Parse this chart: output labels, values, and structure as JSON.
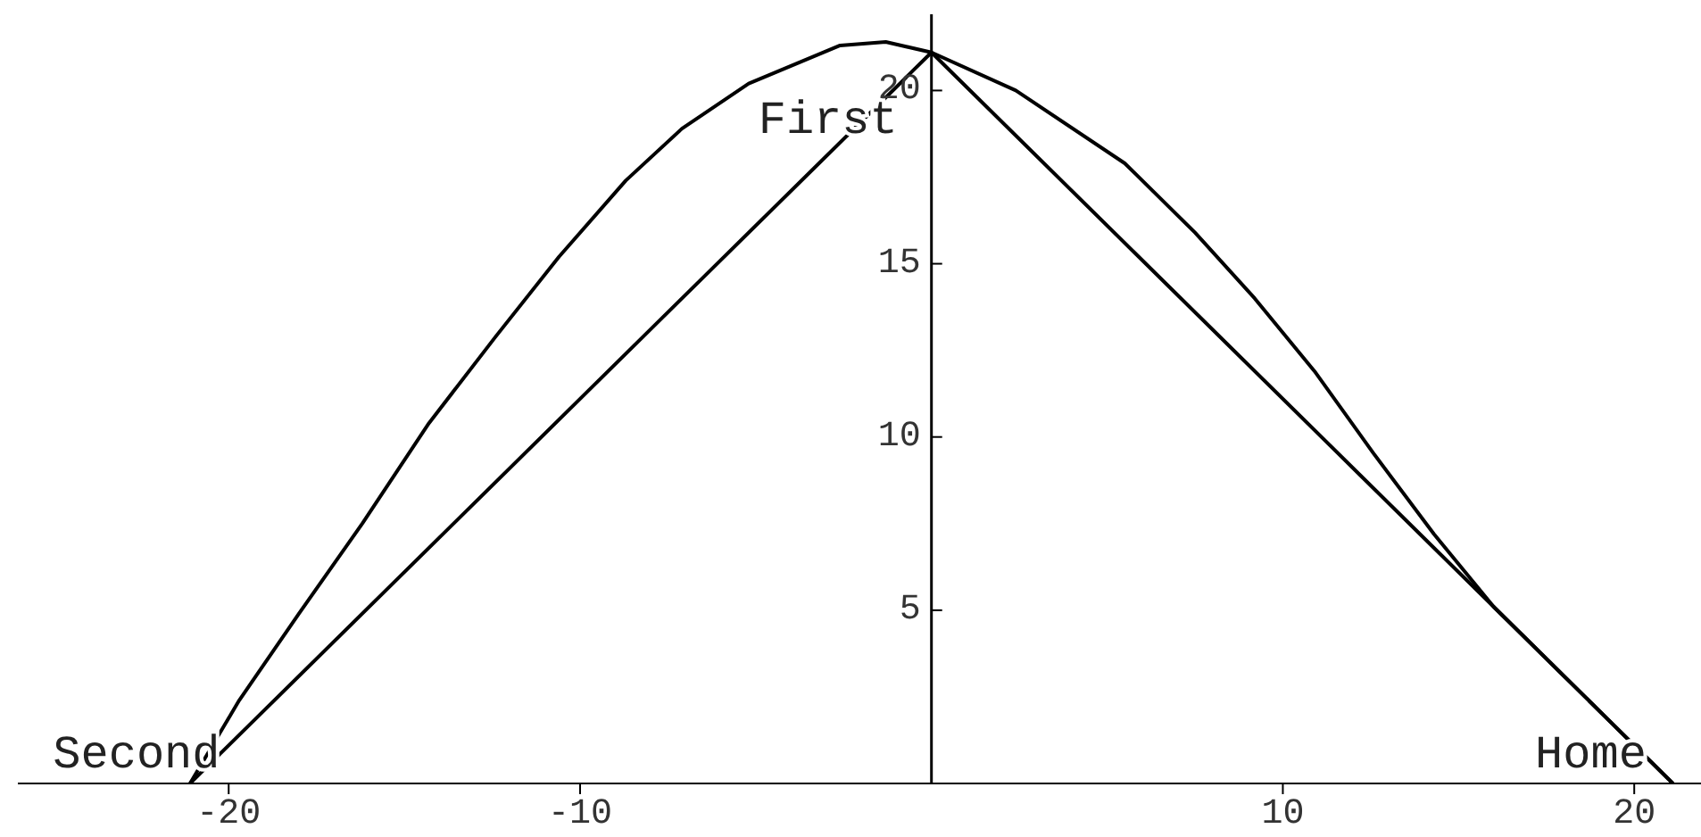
{
  "chart_data": {
    "type": "line",
    "xlim": [
      -26,
      21.9
    ],
    "ylim": [
      0,
      22.2
    ],
    "xticks": [
      -20,
      -10,
      10,
      20
    ],
    "yticks": [
      5,
      10,
      15,
      20
    ],
    "marker": "none",
    "line_style": "solid",
    "series": [
      {
        "color": "#000000",
        "x": [
          -21.1,
          0,
          21.1
        ],
        "values": [
          0,
          21.1,
          0
        ]
      },
      {
        "color": "#000000",
        "x": [
          -21.1,
          -19.7,
          -18.0,
          -16.2,
          -14.3,
          -12.4,
          -10.6,
          -8.7,
          -7.1,
          -5.2,
          -2.6,
          -1.3,
          0,
          2.4,
          5.5,
          7.5,
          9.2,
          10.9,
          12.6,
          14.3,
          16.0,
          17.7,
          19.3,
          21.1
        ],
        "values": [
          0,
          2.4,
          4.9,
          7.5,
          10.4,
          12.9,
          15.2,
          17.4,
          18.9,
          20.2,
          21.3,
          21.4,
          21.1,
          20.0,
          17.9,
          15.9,
          14.0,
          11.9,
          9.5,
          7.2,
          5.1,
          3.4,
          1.8,
          0
        ]
      }
    ],
    "annotations": [
      "First",
      "Second",
      "Home"
    ]
  }
}
